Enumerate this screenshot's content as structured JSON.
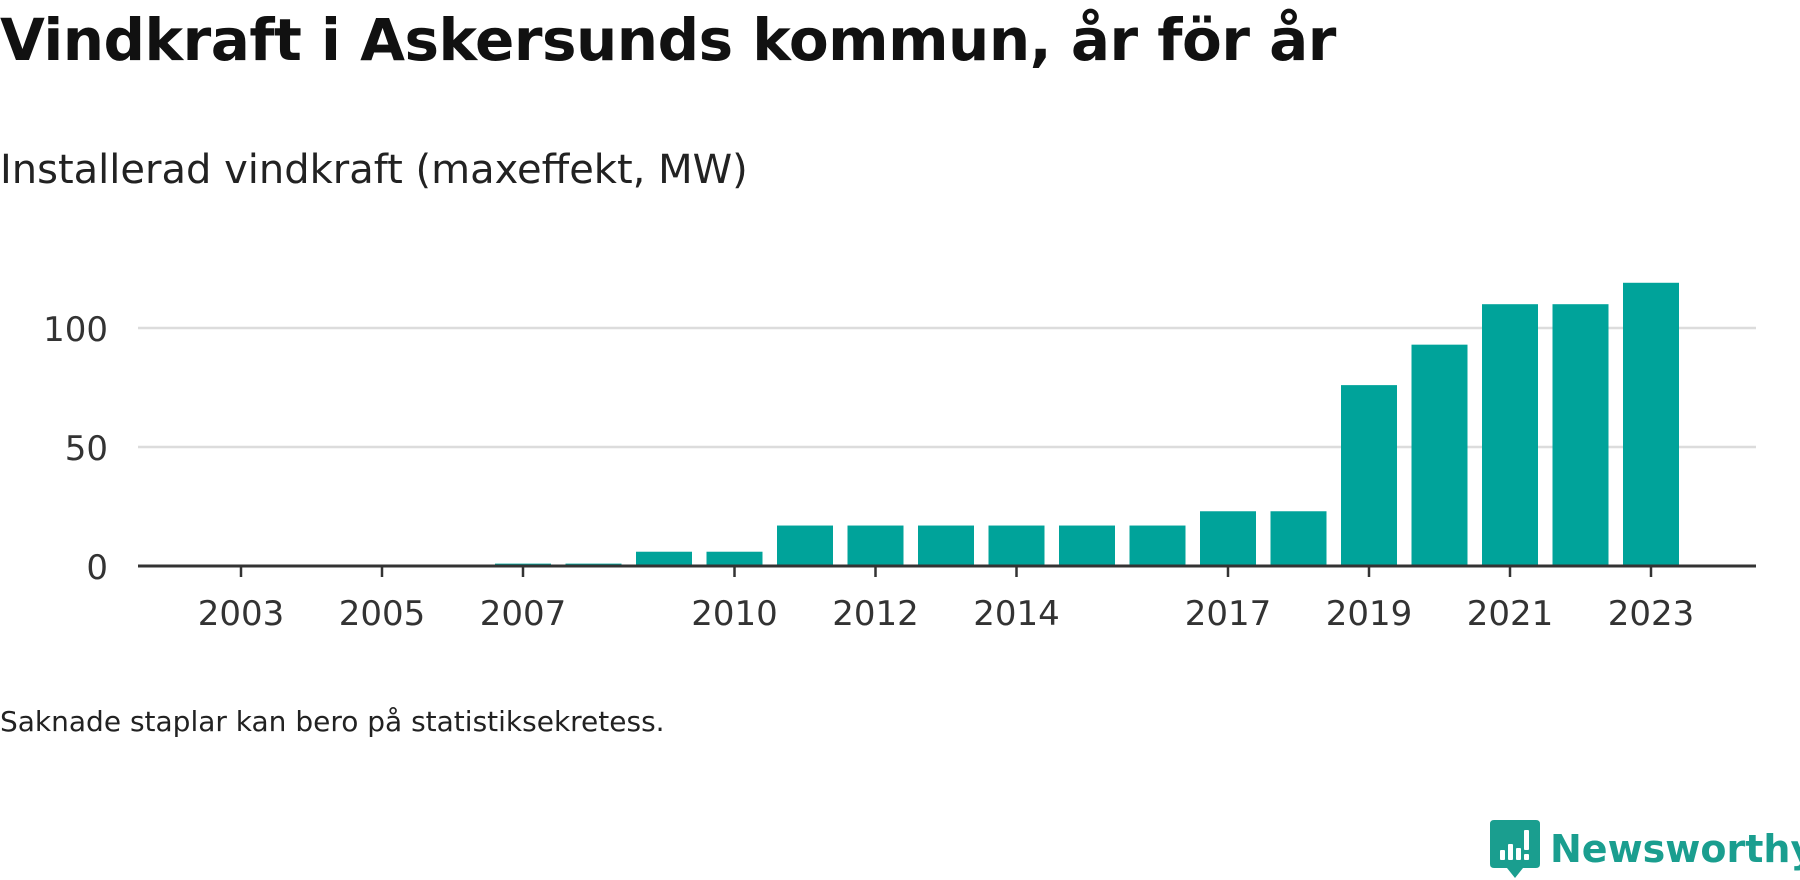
{
  "chart_data": {
    "type": "bar",
    "title": "Vindkraft i Askersunds kommun, år för år",
    "subtitle": "Installerad vindkraft (maxeffekt, MW)",
    "note": "Saknade staplar kan bero på statistiksekretess.",
    "categories": [
      "2003",
      "2004",
      "2005",
      "2006",
      "2007",
      "2008",
      "2009",
      "2010",
      "2011",
      "2012",
      "2013",
      "2014",
      "2015",
      "2016",
      "2017",
      "2018",
      "2019",
      "2020",
      "2021",
      "2022",
      "2023"
    ],
    "values": [
      0,
      0,
      0,
      0,
      1,
      1,
      6,
      6,
      17,
      17,
      17,
      17,
      17,
      17,
      23,
      23,
      76,
      93,
      110,
      110,
      119
    ],
    "x_tick_labels": [
      "2003",
      "2005",
      "2007",
      "2010",
      "2012",
      "2014",
      "2017",
      "2019",
      "2021",
      "2023"
    ],
    "y_ticks": [
      0,
      50,
      100
    ],
    "ylim": [
      0,
      125
    ],
    "bar_color": "#00a39a",
    "grid": true
  },
  "brand": {
    "name": "Newsworthy",
    "color": "#1a9e8f"
  }
}
